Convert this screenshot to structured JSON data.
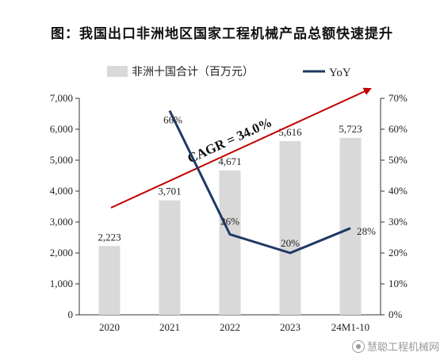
{
  "title": "图：我国出口非洲地区国家工程机械产品总额快速提升",
  "watermark": "慧聪工程机械网",
  "colors": {
    "bar": "#d9d9d9",
    "line": "#1f3864",
    "arrow": "#c00000",
    "text": "#222222",
    "axis": "#333333"
  },
  "chart_data": {
    "type": "bar",
    "categories": [
      "2020",
      "2021",
      "2022",
      "2023",
      "24M1-10"
    ],
    "series": [
      {
        "name": "非洲十国合计（百万元）",
        "type": "bar",
        "axis": "left",
        "values": [
          2223,
          3701,
          4671,
          5616,
          5723
        ],
        "labels": [
          "2,223",
          "3,701",
          "4,671",
          "5,616",
          "5,723"
        ]
      },
      {
        "name": "YoY",
        "type": "line",
        "axis": "right",
        "values": [
          null,
          66,
          26,
          20,
          28
        ],
        "labels": [
          "",
          "66%",
          "26%",
          "20%",
          "28%"
        ]
      }
    ],
    "y_left": {
      "range": [
        0,
        7000
      ],
      "ticks": [
        0,
        1000,
        2000,
        3000,
        4000,
        5000,
        6000,
        7000
      ],
      "tick_labels": [
        "0",
        "1,000",
        "2,000",
        "3,000",
        "4,000",
        "5,000",
        "6,000",
        "7,000"
      ]
    },
    "y_right": {
      "range": [
        0,
        70
      ],
      "ticks": [
        0,
        10,
        20,
        30,
        40,
        50,
        60,
        70
      ],
      "tick_labels": [
        "0%",
        "10%",
        "20%",
        "30%",
        "40%",
        "50%",
        "60%",
        "70%"
      ]
    },
    "annotation": "CAGR = 34.0%",
    "legend_placement": "top",
    "grid": false
  }
}
